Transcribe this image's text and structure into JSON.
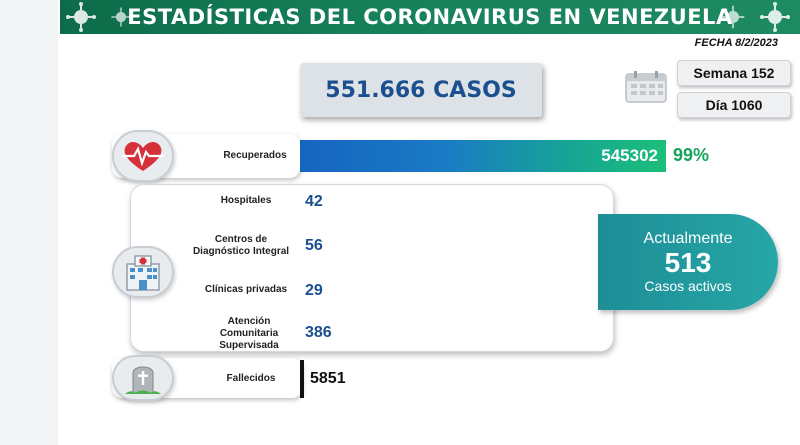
{
  "header": {
    "title": "ESTADÍSTICAS DEL CORONAVIRUS EN VENEZUELA",
    "date": "FECHA 8/2/2023"
  },
  "total_cases": "551.666 CASOS",
  "calendar": {
    "week": "Semana 152",
    "day": "Día 1060"
  },
  "recovered": {
    "label": "Recuperados",
    "value": "545302",
    "percent": "99%",
    "icon": "heart-pulse-icon"
  },
  "attention": {
    "icon": "hospital-icon",
    "items": [
      {
        "label": "Hospitales",
        "value": "42"
      },
      {
        "label": "Centros de Diagnóstico Integral",
        "value": "56"
      },
      {
        "label": "Clínicas privadas",
        "value": "29"
      },
      {
        "label": "Atención Comunitaria Supervisada",
        "value": "386"
      }
    ]
  },
  "active": {
    "line1": "Actualmente",
    "value": "513",
    "line3": "Casos activos"
  },
  "deaths": {
    "label": "Fallecidos",
    "value": "5851",
    "icon": "tombstone-icon"
  },
  "colors": {
    "banner": "#16815a",
    "accent_blue": "#1b4f8f",
    "recovered_green": "#17a35a",
    "active_teal": "#26a6a7"
  }
}
